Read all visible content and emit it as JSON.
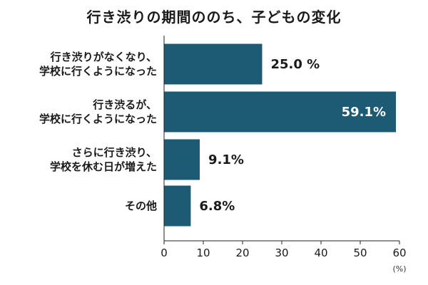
{
  "chart_data": {
    "type": "bar",
    "orientation": "horizontal",
    "title": "行き渋りの期間ののち、子どもの変化",
    "categories": [
      [
        "行き渋りがなくなり、",
        "学校に行くようになった"
      ],
      [
        "行き渋るが、",
        "学校に行くようになった"
      ],
      [
        "さらに行き渋り、",
        "学校を休む日が増えた"
      ],
      [
        "その他"
      ]
    ],
    "values": [
      25.0,
      59.1,
      9.1,
      6.8
    ],
    "value_labels": [
      "25.0 %",
      "59.1%",
      "9.1%",
      "6.8%"
    ],
    "xlim": [
      0,
      60
    ],
    "xticks": [
      0,
      10,
      20,
      30,
      40,
      50,
      60
    ],
    "x_unit": "(%)",
    "bar_color": "#1d5a73",
    "grid": false
  }
}
